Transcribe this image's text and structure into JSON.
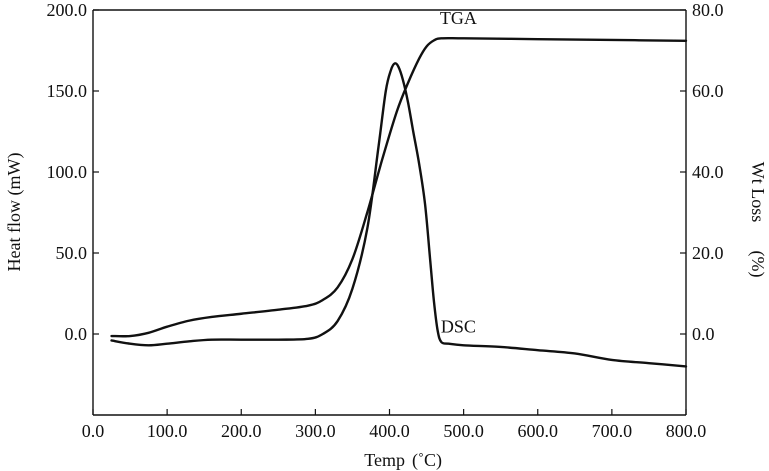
{
  "chart_data": {
    "type": "line",
    "title": "",
    "xlabel": "Temp",
    "xlabel_unit": "(˚C)",
    "ylabel_left": "Heat flow (mW)",
    "ylabel_right": "Wt Loss",
    "ylabel_right_unit": "(%)",
    "xlim": [
      0,
      800
    ],
    "ylim_left": [
      -50,
      200
    ],
    "ylim_right": [
      -20,
      80
    ],
    "x_ticks": [
      {
        "value": 0,
        "label": "0.0"
      },
      {
        "value": 100,
        "label": "100.0"
      },
      {
        "value": 200,
        "label": "200.0"
      },
      {
        "value": 300,
        "label": "300.0"
      },
      {
        "value": 400,
        "label": "400.0"
      },
      {
        "value": 500,
        "label": "500.0"
      },
      {
        "value": 600,
        "label": "600.0"
      },
      {
        "value": 700,
        "label": "700.0"
      },
      {
        "value": 800,
        "label": "800.0"
      }
    ],
    "y_left_ticks": [
      {
        "value": 0,
        "label": "0.0"
      },
      {
        "value": 50,
        "label": "50.0"
      },
      {
        "value": 100,
        "label": "100.0"
      },
      {
        "value": 150,
        "label": "150.0"
      },
      {
        "value": 200,
        "label": "200.0"
      }
    ],
    "y_right_ticks": [
      {
        "value": 0,
        "label": "0.0"
      },
      {
        "value": 20,
        "label": "20.0"
      },
      {
        "value": 40,
        "label": "40.0"
      },
      {
        "value": 60,
        "label": "60.0"
      },
      {
        "value": 80,
        "label": "80.0"
      }
    ],
    "grid": false,
    "series": [
      {
        "name": "DSC",
        "axis": "left",
        "x": [
          25,
          50,
          75,
          100,
          130,
          160,
          200,
          250,
          290,
          310,
          330,
          350,
          370,
          385,
          395,
          402,
          407,
          412,
          418,
          425,
          432,
          440,
          448,
          455,
          460,
          465,
          470,
          480,
          500,
          550,
          600,
          650,
          700,
          750,
          800
        ],
        "y": [
          -4,
          -6,
          -7,
          -6,
          -4.5,
          -3.5,
          -3.5,
          -3.5,
          -3,
          0,
          8,
          28,
          65,
          115,
          150,
          163,
          167,
          165,
          157,
          143,
          125,
          105,
          80,
          45,
          20,
          2,
          -5,
          -6,
          -7,
          -8,
          -10,
          -12,
          -16,
          -18,
          -20
        ]
      },
      {
        "name": "TGA",
        "axis": "right",
        "x": [
          25,
          50,
          75,
          100,
          130,
          160,
          200,
          250,
          290,
          310,
          330,
          350,
          370,
          390,
          410,
          425,
          440,
          450,
          460,
          470,
          500,
          600,
          700,
          800
        ],
        "y": [
          -0.5,
          -0.5,
          0.3,
          1.8,
          3.3,
          4.2,
          5.0,
          6.0,
          7.0,
          8.4,
          11.5,
          18.5,
          30,
          43,
          55,
          62,
          68,
          71,
          72.5,
          73,
          73,
          72.8,
          72.6,
          72.4
        ]
      }
    ],
    "annotations": [
      {
        "text": "TGA",
        "x": 493,
        "y_right": 76.5
      },
      {
        "text": "DSC",
        "x": 493,
        "y_left": 1
      }
    ]
  }
}
